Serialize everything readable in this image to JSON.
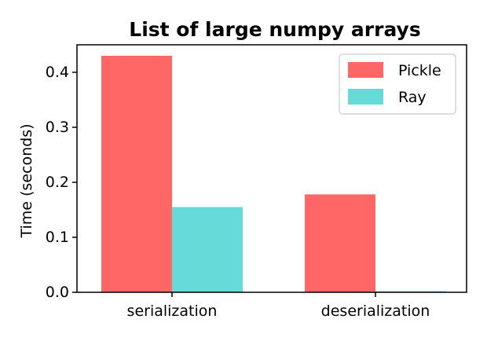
{
  "chart_data": {
    "type": "bar",
    "title": "List of large numpy arrays",
    "xlabel": "",
    "ylabel": "Time (seconds)",
    "categories": [
      "serialization",
      "deserialization"
    ],
    "series": [
      {
        "name": "Pickle",
        "values": [
          0.43,
          0.178
        ],
        "color": "#ff6666"
      },
      {
        "name": "Ray",
        "values": [
          0.155,
          0.002
        ],
        "color": "#66d9d9"
      }
    ],
    "ylim": [
      0,
      0.45
    ],
    "yticks": [
      "0.0",
      "0.1",
      "0.2",
      "0.3",
      "0.4"
    ],
    "grid": false,
    "legend_position": "top-right"
  }
}
